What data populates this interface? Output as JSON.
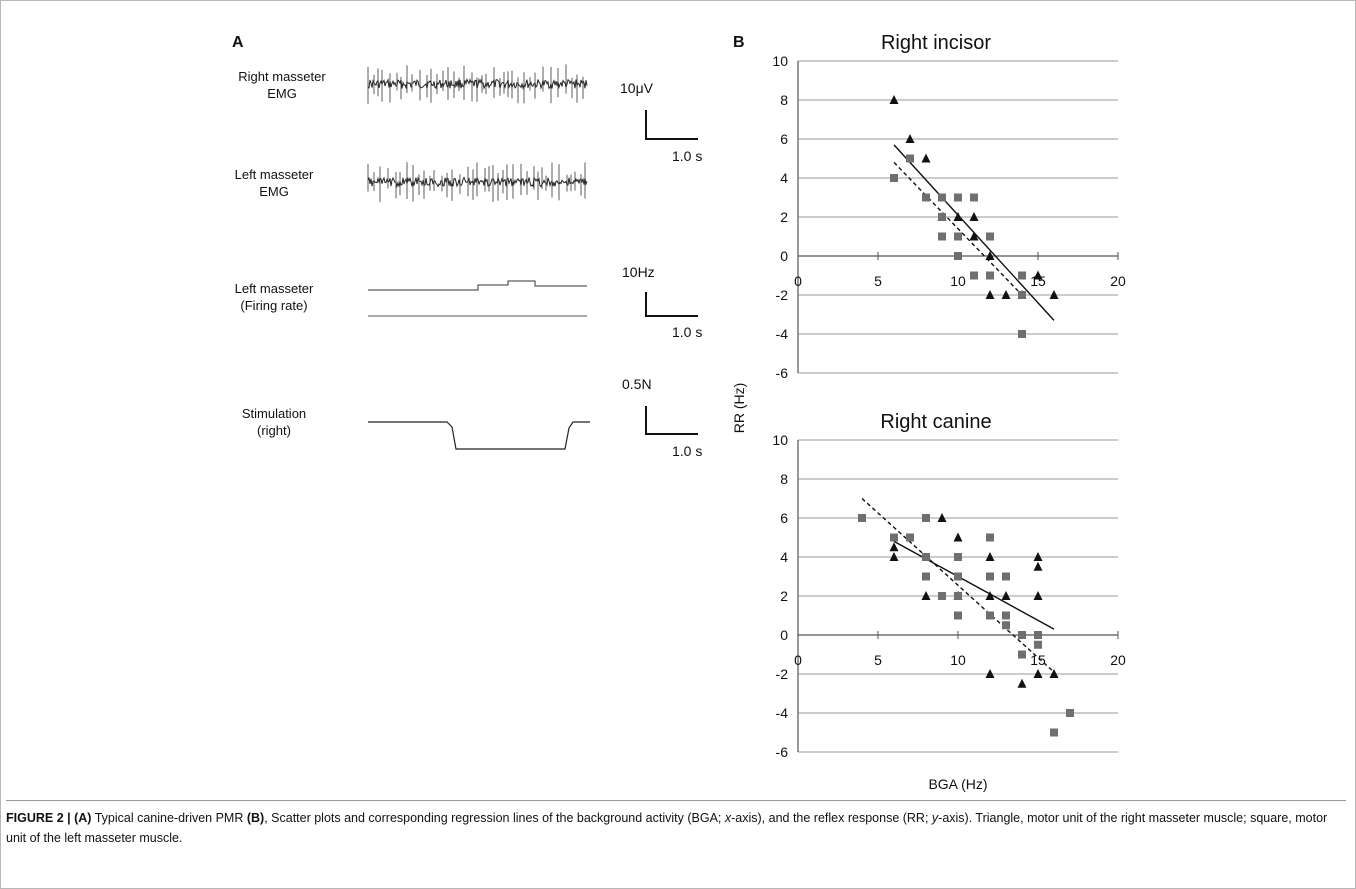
{
  "panel_a": {
    "letter": "A",
    "traces": [
      {
        "label_line1": "Right masseter",
        "label_line2": "EMG"
      },
      {
        "label_line1": "Left masseter",
        "label_line2": "EMG"
      },
      {
        "label_line1": "Left masseter",
        "label_line2": "(Firing rate)"
      },
      {
        "label_line1": "Stimulation",
        "label_line2": "(right)"
      }
    ],
    "scales": [
      {
        "amplitude": "10μV",
        "time": "1.0 s"
      },
      {
        "amplitude": "10Hz",
        "time": "1.0 s"
      },
      {
        "amplitude": "0.5N",
        "time": "1.0 s"
      }
    ]
  },
  "panel_b": {
    "letter": "B",
    "y_axis_title": "RR (Hz)",
    "x_axis_title": "BGA (Hz)"
  },
  "chart_data": [
    {
      "type": "scatter",
      "title": "Right incisor",
      "xlim": [
        0,
        20
      ],
      "ylim": [
        -6,
        10
      ],
      "x_ticks": [
        "0",
        "5",
        "10",
        "15",
        "20"
      ],
      "y_ticks": [
        "10",
        "8",
        "6",
        "4",
        "2",
        "0",
        "-2",
        "-4",
        "-6"
      ],
      "grid": true,
      "series": [
        {
          "marker": "triangle",
          "color": "#111111",
          "points": [
            [
              6,
              8
            ],
            [
              7,
              6
            ],
            [
              8,
              5
            ],
            [
              9,
              2
            ],
            [
              10,
              2
            ],
            [
              11,
              2
            ],
            [
              11,
              1
            ],
            [
              12,
              0
            ],
            [
              12,
              -2
            ],
            [
              13,
              -2
            ],
            [
              14,
              -2
            ],
            [
              15,
              -1
            ],
            [
              16,
              -2
            ]
          ],
          "fit_line": {
            "style": "solid",
            "x": [
              6,
              16
            ],
            "y": [
              5.7,
              -3.3
            ]
          }
        },
        {
          "marker": "square",
          "color": "#6f6f6f",
          "points": [
            [
              6,
              4
            ],
            [
              7,
              5
            ],
            [
              8,
              3
            ],
            [
              9,
              3
            ],
            [
              9,
              2
            ],
            [
              9,
              1
            ],
            [
              10,
              3
            ],
            [
              10,
              1
            ],
            [
              10,
              0
            ],
            [
              11,
              3
            ],
            [
              11,
              -1
            ],
            [
              12,
              1
            ],
            [
              12,
              -1
            ],
            [
              14,
              -1
            ],
            [
              14,
              -2
            ],
            [
              14,
              -4
            ]
          ],
          "fit_line": {
            "style": "dashed",
            "x": [
              6,
              14
            ],
            "y": [
              4.8,
              -2.0
            ]
          }
        }
      ]
    },
    {
      "type": "scatter",
      "title": "Right canine",
      "xlim": [
        0,
        20
      ],
      "ylim": [
        -6,
        10
      ],
      "x_ticks": [
        "0",
        "5",
        "10",
        "15",
        "20"
      ],
      "y_ticks": [
        "10",
        "8",
        "6",
        "4",
        "2",
        "0",
        "-2",
        "-4",
        "-6"
      ],
      "grid": true,
      "series": [
        {
          "marker": "triangle",
          "color": "#111111",
          "points": [
            [
              6,
              4
            ],
            [
              6,
              4.5
            ],
            [
              8,
              2
            ],
            [
              9,
              6
            ],
            [
              10,
              5
            ],
            [
              10,
              2
            ],
            [
              12,
              4
            ],
            [
              12,
              2
            ],
            [
              12,
              -2
            ],
            [
              13,
              2
            ],
            [
              14,
              -2.5
            ],
            [
              15,
              4
            ],
            [
              15,
              3.5
            ],
            [
              15,
              2
            ],
            [
              15,
              -2
            ],
            [
              16,
              -2
            ]
          ],
          "fit_line": {
            "style": "solid",
            "x": [
              6,
              16
            ],
            "y": [
              4.8,
              0.3
            ]
          }
        },
        {
          "marker": "square",
          "color": "#6f6f6f",
          "points": [
            [
              4,
              6
            ],
            [
              6,
              5
            ],
            [
              7,
              5
            ],
            [
              8,
              6
            ],
            [
              8,
              4
            ],
            [
              8,
              3
            ],
            [
              9,
              2
            ],
            [
              10,
              4
            ],
            [
              10,
              3
            ],
            [
              10,
              2
            ],
            [
              10,
              1
            ],
            [
              12,
              5
            ],
            [
              12,
              3
            ],
            [
              12,
              1
            ],
            [
              13,
              3
            ],
            [
              13,
              1
            ],
            [
              13,
              0.5
            ],
            [
              14,
              0
            ],
            [
              14,
              -1
            ],
            [
              15,
              0
            ],
            [
              15,
              -0.5
            ],
            [
              16,
              -5
            ],
            [
              17,
              -4
            ]
          ],
          "fit_line": {
            "style": "dashed",
            "x": [
              4,
              16
            ],
            "y": [
              7.0,
              -1.9
            ]
          }
        }
      ]
    }
  ],
  "caption": {
    "label": "FIGURE 2 | (A)",
    "part1": " Typical canine-driven PMR ",
    "label_b": "(B)",
    "part2": ", Scatter plots and corresponding regression lines of the background activity (BGA; ",
    "x_axis_italic": "x",
    "part3": "-axis), and the reflex response (RR; ",
    "y_axis_italic": "y",
    "part4": "-axis). Triangle, motor unit of the right masseter muscle; square, motor unit of the left masseter muscle."
  }
}
